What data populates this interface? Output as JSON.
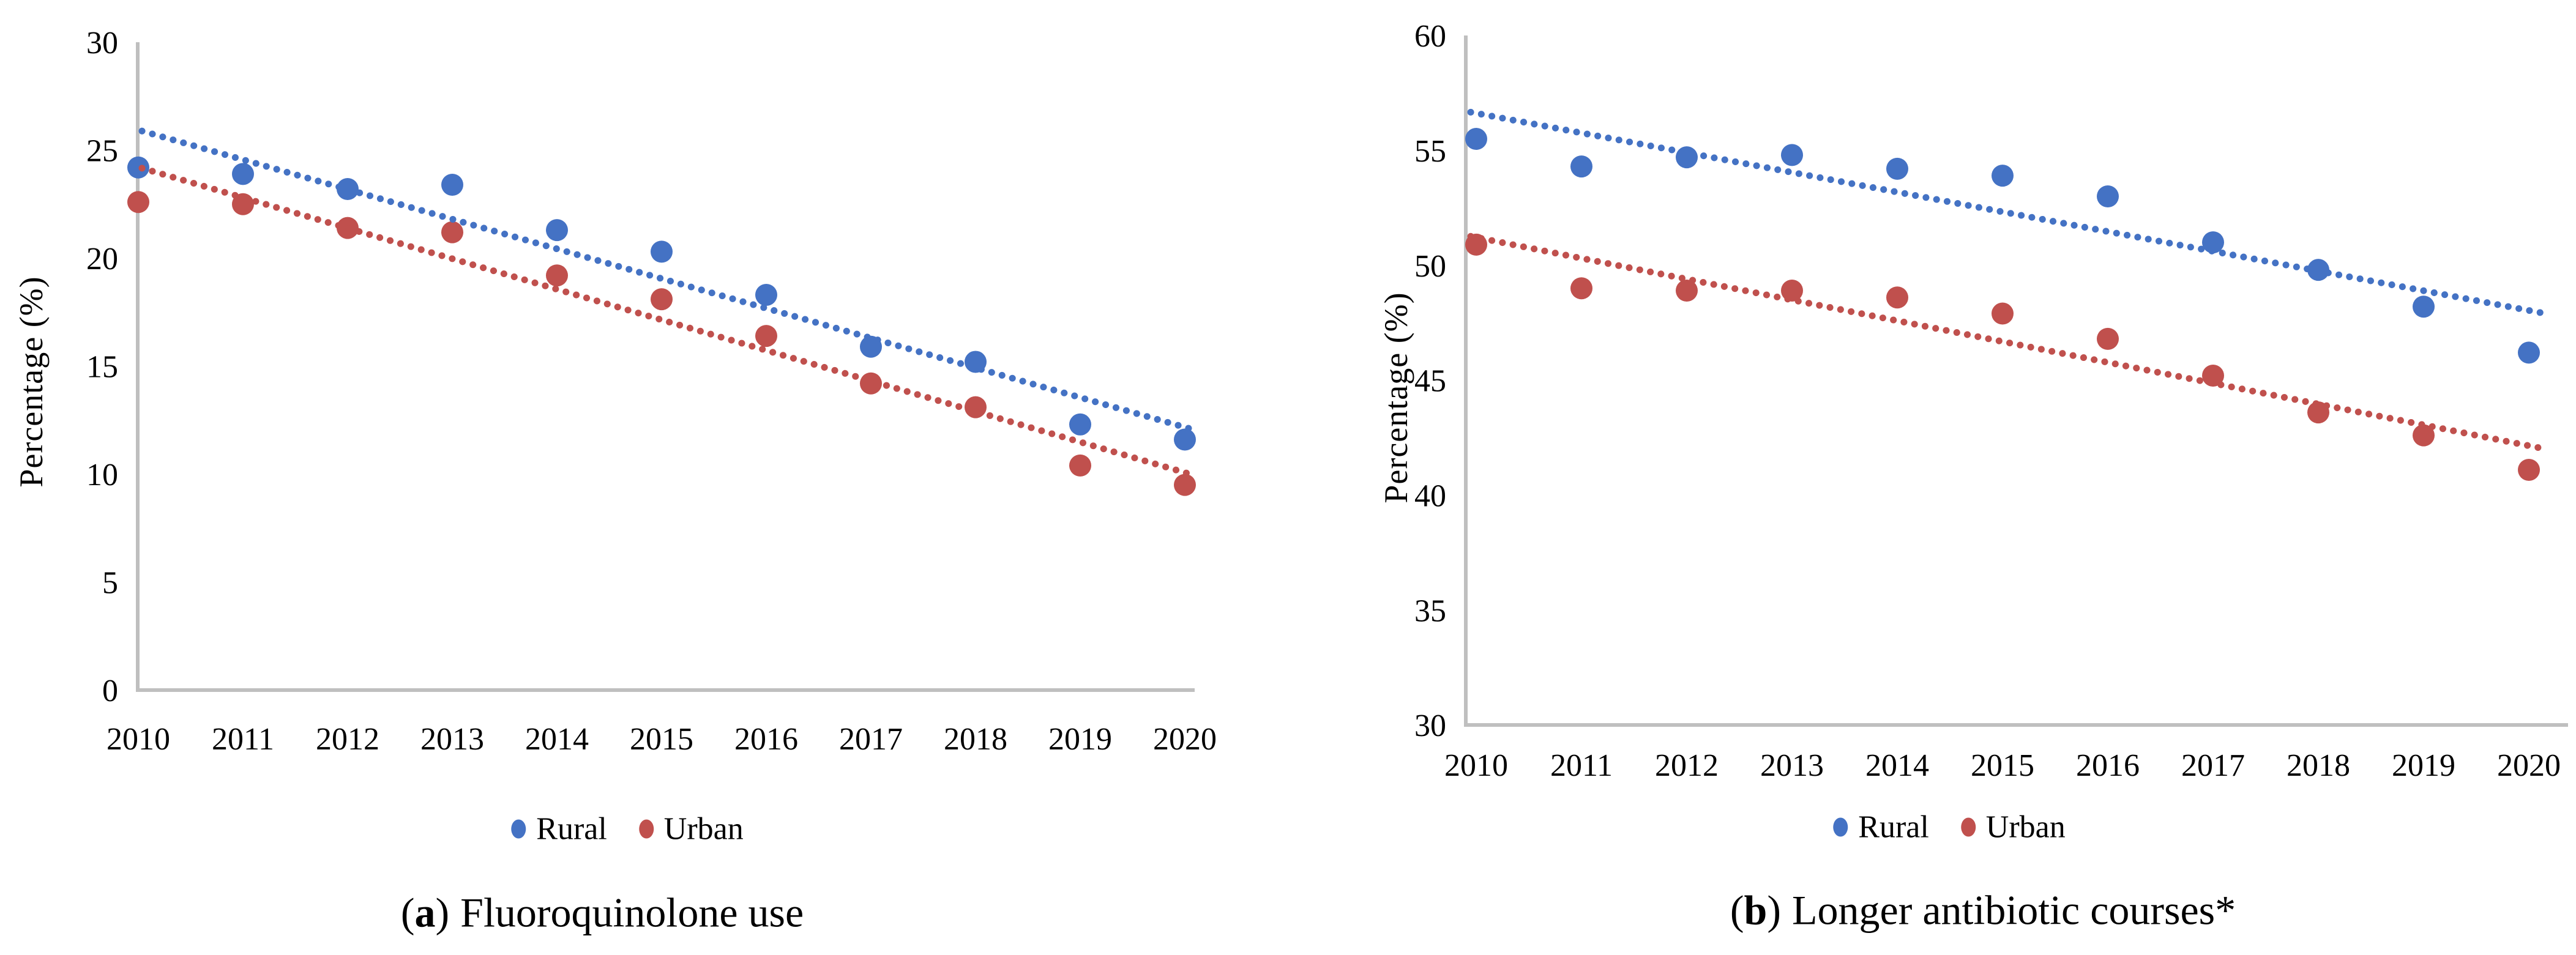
{
  "colors": {
    "rural": "#4472C4",
    "urban": "#C0504D",
    "axis": "#BFBFBF",
    "text": "#000000",
    "background": "#FFFFFF"
  },
  "chart_data": [
    {
      "id": "a",
      "type": "scatter",
      "caption": {
        "open": "(",
        "letter": "a",
        "close": ")",
        "label": "Fluoroquinolone use"
      },
      "ylabel": "Percentage (%)",
      "xlabel": "",
      "x": [
        2010,
        2011,
        2012,
        2013,
        2014,
        2015,
        2016,
        2017,
        2018,
        2019,
        2020
      ],
      "series": [
        {
          "name": "Rural",
          "color_key": "rural",
          "trendline": "linear-dotted",
          "values": [
            24.2,
            23.9,
            23.2,
            23.4,
            21.3,
            20.3,
            18.3,
            15.9,
            15.2,
            12.3,
            11.6
          ]
        },
        {
          "name": "Urban",
          "color_key": "urban",
          "trendline": "linear-dotted",
          "values": [
            22.6,
            22.5,
            21.4,
            21.2,
            19.2,
            18.1,
            16.4,
            14.2,
            13.1,
            10.4,
            9.5
          ]
        }
      ],
      "ylim": [
        0,
        30
      ],
      "ytick_step": 5,
      "grid": false,
      "legend_position": "bottom"
    },
    {
      "id": "b",
      "type": "scatter",
      "caption": {
        "open": "(",
        "letter": "b",
        "close": ")",
        "label": "Longer antibiotic courses*"
      },
      "ylabel": "Percentage (%)",
      "xlabel": "",
      "x": [
        2010,
        2011,
        2012,
        2013,
        2014,
        2015,
        2016,
        2017,
        2018,
        2019,
        2020
      ],
      "series": [
        {
          "name": "Rural",
          "color_key": "rural",
          "trendline": "linear-dotted",
          "values": [
            55.5,
            54.3,
            54.7,
            54.8,
            54.2,
            53.9,
            53.0,
            51.0,
            49.8,
            48.2,
            46.2
          ]
        },
        {
          "name": "Urban",
          "color_key": "urban",
          "trendline": "linear-dotted",
          "values": [
            50.9,
            49.0,
            48.9,
            48.9,
            48.6,
            47.9,
            46.8,
            45.2,
            43.6,
            42.6,
            41.1
          ]
        }
      ],
      "ylim": [
        30,
        60
      ],
      "ytick_step": 5,
      "grid": false,
      "legend_position": "bottom"
    }
  ]
}
